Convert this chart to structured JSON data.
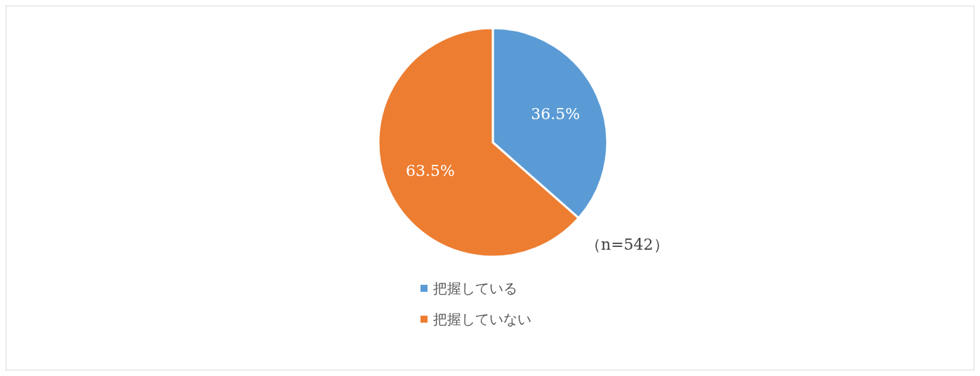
{
  "chart_data": {
    "type": "pie",
    "categories": [
      "把握している",
      "把握していない"
    ],
    "values": [
      36.5,
      63.5
    ],
    "colors": [
      "#5b9bd5",
      "#ed7d31"
    ],
    "value_labels": [
      "36.5%",
      "63.5%"
    ],
    "annotations": [
      "（n=542）"
    ],
    "legend": "bottom"
  }
}
